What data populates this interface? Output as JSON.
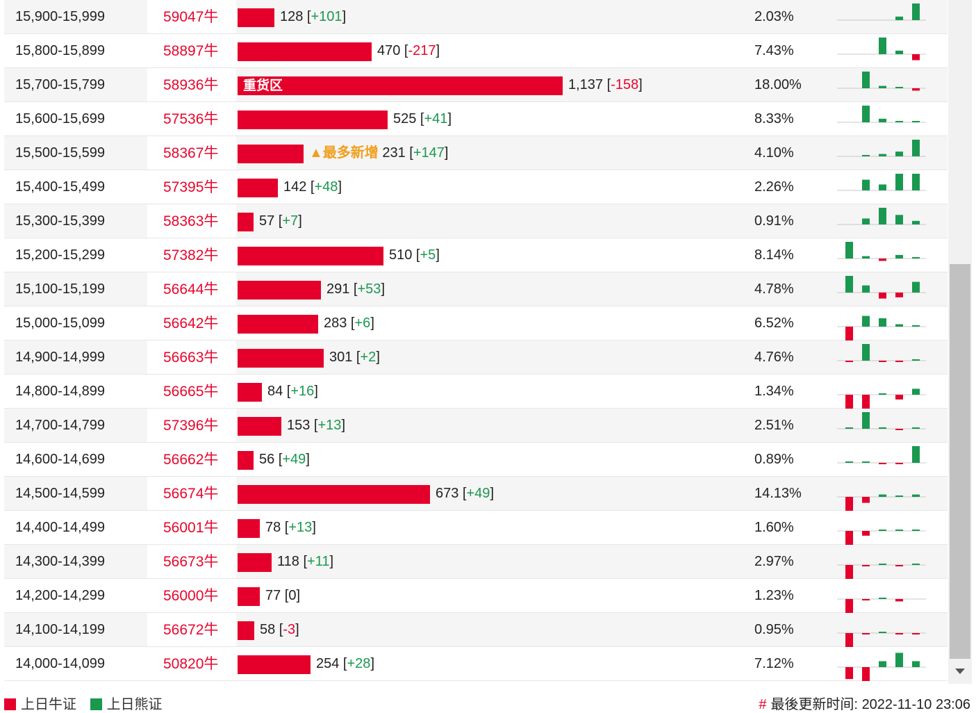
{
  "rows": [
    {
      "range": "15,900-15,999",
      "code": "59047牛",
      "value": "128",
      "delta": "+101",
      "pct": "2.03%",
      "bar": 128,
      "spark": [
        0,
        0,
        0,
        3,
        14
      ]
    },
    {
      "range": "15,800-15,899",
      "code": "58897牛",
      "value": "470",
      "delta": "-217",
      "pct": "7.43%",
      "bar": 470,
      "spark": [
        0,
        0,
        14,
        3,
        -5
      ]
    },
    {
      "range": "15,700-15,799",
      "code": "58936牛",
      "value": "1,137",
      "delta": "-158",
      "pct": "18.00%",
      "bar": 1137,
      "bar_label": "重货区",
      "spark": [
        0,
        14,
        2,
        1,
        -2
      ]
    },
    {
      "range": "15,600-15,699",
      "code": "57536牛",
      "value": "525",
      "delta": "+41",
      "pct": "8.33%",
      "bar": 525,
      "spark": [
        0,
        14,
        3,
        1,
        1
      ]
    },
    {
      "range": "15,500-15,599",
      "code": "58367牛",
      "value": "231",
      "delta": "+147",
      "pct": "4.10%",
      "bar": 231,
      "tag": "▲最多新增",
      "spark": [
        0,
        1,
        2,
        4,
        14
      ]
    },
    {
      "range": "15,400-15,499",
      "code": "57395牛",
      "value": "142",
      "delta": "+48",
      "pct": "2.26%",
      "bar": 142,
      "spark": [
        0,
        9,
        5,
        14,
        14
      ]
    },
    {
      "range": "15,300-15,399",
      "code": "58363牛",
      "value": "57",
      "delta": "+7",
      "pct": "0.91%",
      "bar": 57,
      "spark": [
        0,
        5,
        14,
        8,
        3
      ]
    },
    {
      "range": "15,200-15,299",
      "code": "57382牛",
      "value": "510",
      "delta": "+5",
      "pct": "8.14%",
      "bar": 510,
      "spark": [
        14,
        2,
        -2,
        3,
        1
      ]
    },
    {
      "range": "15,100-15,199",
      "code": "56644牛",
      "value": "291",
      "delta": "+53",
      "pct": "4.78%",
      "bar": 291,
      "spark": [
        14,
        6,
        -5,
        -4,
        9
      ]
    },
    {
      "range": "15,000-15,099",
      "code": "56642牛",
      "value": "283",
      "delta": "+6",
      "pct": "6.52%",
      "bar": 283,
      "spark": [
        -14,
        9,
        7,
        2,
        1
      ]
    },
    {
      "range": "14,900-14,999",
      "code": "56663牛",
      "value": "301",
      "delta": "+2",
      "pct": "4.76%",
      "bar": 301,
      "spark": [
        -1,
        14,
        -1,
        -1,
        1
      ]
    },
    {
      "range": "14,800-14,899",
      "code": "56665牛",
      "value": "84",
      "delta": "+16",
      "pct": "1.34%",
      "bar": 84,
      "spark": [
        -14,
        -14,
        1,
        -4,
        5
      ]
    },
    {
      "range": "14,700-14,799",
      "code": "57396牛",
      "value": "153",
      "delta": "+13",
      "pct": "2.51%",
      "bar": 153,
      "spark": [
        1,
        14,
        1,
        -1,
        1
      ]
    },
    {
      "range": "14,600-14,699",
      "code": "56662牛",
      "value": "56",
      "delta": "+49",
      "pct": "0.89%",
      "bar": 56,
      "spark": [
        1,
        1,
        -1,
        -1,
        14
      ]
    },
    {
      "range": "14,500-14,599",
      "code": "56674牛",
      "value": "673",
      "delta": "+49",
      "pct": "14.13%",
      "bar": 673,
      "spark": [
        -14,
        -5,
        2,
        1,
        2
      ]
    },
    {
      "range": "14,400-14,499",
      "code": "56001牛",
      "value": "78",
      "delta": "+13",
      "pct": "1.60%",
      "bar": 78,
      "spark": [
        -14,
        -4,
        1,
        1,
        1
      ]
    },
    {
      "range": "14,300-14,399",
      "code": "56673牛",
      "value": "118",
      "delta": "+11",
      "pct": "2.97%",
      "bar": 118,
      "spark": [
        -14,
        -1,
        1,
        -1,
        1
      ]
    },
    {
      "range": "14,200-14,299",
      "code": "56000牛",
      "value": "77",
      "delta": "0",
      "pct": "1.23%",
      "bar": 77,
      "spark": [
        -14,
        -1,
        1,
        -2,
        0
      ]
    },
    {
      "range": "14,100-14,199",
      "code": "56672牛",
      "value": "58",
      "delta": "-3",
      "pct": "0.95%",
      "bar": 58,
      "spark": [
        -14,
        -1,
        1,
        -1,
        -1
      ]
    },
    {
      "range": "14,000-14,099",
      "code": "50820牛",
      "value": "254",
      "delta": "+28",
      "pct": "7.12%",
      "bar": 254,
      "spark": [
        -10,
        -14,
        5,
        12,
        5
      ]
    }
  ],
  "bar_max": 1137,
  "colors": {
    "bull": "#e4002b",
    "bear": "#1a9850",
    "tag": "#f0a020"
  },
  "legend": {
    "bull_label": "上日牛证",
    "bear_label": "上日熊证"
  },
  "updated": {
    "hash": "#",
    "label": "最後更新时间:",
    "time": "2022-11-10 23:06"
  }
}
